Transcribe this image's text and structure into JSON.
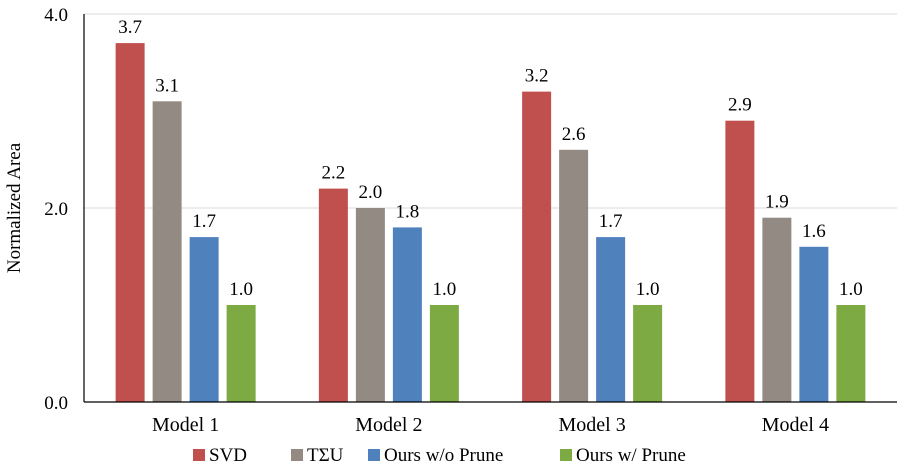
{
  "chart_data": {
    "type": "bar",
    "title": "",
    "xlabel": "",
    "ylabel": "Normalized Area",
    "ylim": [
      0,
      4
    ],
    "yticks": [
      "0.0",
      "2.0",
      "4.0"
    ],
    "grid": true,
    "legend_position": "bottom",
    "categories": [
      "Model 1",
      "Model 2",
      "Model 3",
      "Model 4"
    ],
    "series": [
      {
        "name": "SVD",
        "color": "#c0504d",
        "values": [
          3.7,
          2.2,
          3.2,
          2.9
        ],
        "labels": [
          "3.7",
          "2.2",
          "3.2",
          "2.9"
        ]
      },
      {
        "name": "TΣU",
        "color": "#948a84",
        "values": [
          3.1,
          2.0,
          2.6,
          1.9
        ],
        "labels": [
          "3.1",
          "2.0",
          "2.6",
          "1.9"
        ]
      },
      {
        "name": "Ours w/o Prune",
        "color": "#4f81bd",
        "values": [
          1.7,
          1.8,
          1.7,
          1.6
        ],
        "labels": [
          "1.7",
          "1.8",
          "1.7",
          "1.6"
        ]
      },
      {
        "name": "Ours w/ Prune",
        "color": "#7eaa44",
        "values": [
          1.0,
          1.0,
          1.0,
          1.0
        ],
        "labels": [
          "1.0",
          "1.0",
          "1.0",
          "1.0"
        ]
      }
    ]
  }
}
